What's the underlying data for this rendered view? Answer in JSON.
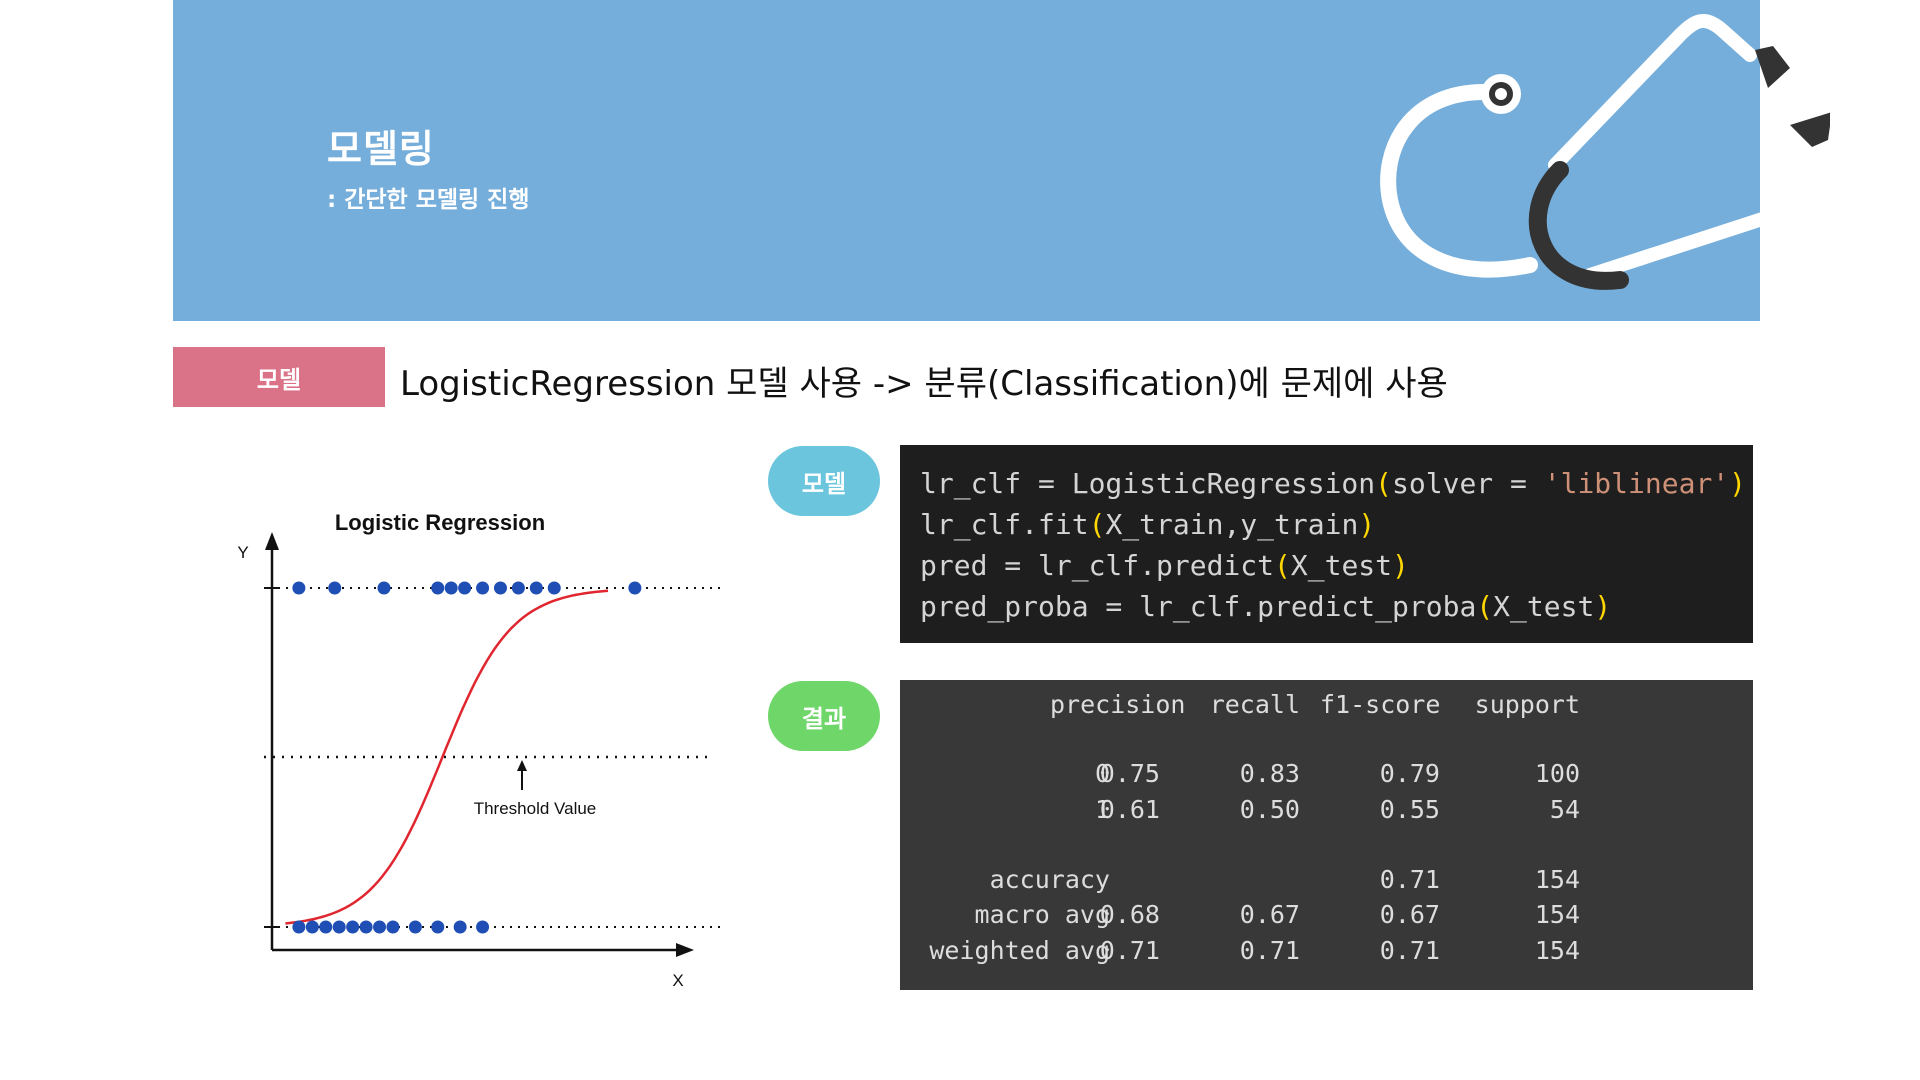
{
  "banner": {
    "title": "모델링",
    "subtitle": ": 간단한 모델링 진행"
  },
  "section": {
    "tag": "모델",
    "description": "LogisticRegression 모델 사용 -> 분류(Classification)에 문제에 사용"
  },
  "chart_data": {
    "type": "scatter",
    "title": "Logistic Regression",
    "xlabel": "X",
    "ylabel": "Y",
    "annotation": "Threshold Value",
    "threshold": 0.5,
    "ylim": [
      0,
      1
    ],
    "series": [
      {
        "name": "",
        "x": [
          0.06,
          0.09,
          0.12,
          0.15,
          0.18,
          0.21,
          0.24,
          0.27,
          0.32,
          0.37,
          0.42,
          0.47
        ],
        "y": [
          0,
          0,
          0,
          0,
          0,
          0,
          0,
          0,
          0,
          0,
          0,
          0
        ]
      },
      {
        "name": "",
        "x": [
          0.06,
          0.14,
          0.25,
          0.37,
          0.4,
          0.43,
          0.47,
          0.51,
          0.55,
          0.59,
          0.63,
          0.81
        ],
        "y": [
          1,
          1,
          1,
          1,
          1,
          1,
          1,
          1,
          1,
          1,
          1,
          1
        ]
      }
    ],
    "colors": {
      "points": "#1f4fb5",
      "curve": "#e0262f",
      "axis": "#111111"
    }
  },
  "model_pill": {
    "label": "모델"
  },
  "result_pill": {
    "label": "결과"
  },
  "code": {
    "line1": {
      "a": "lr_clf = LogisticRegression",
      "b": "(",
      "c": "solver = ",
      "d": "'liblinear'",
      "e": ")"
    },
    "line2": {
      "a": "lr_clf.fit",
      "b": "(",
      "c": "X_train,y_train",
      "d": ")"
    },
    "line3": {
      "a": "pred = lr_clf.predict",
      "b": "(",
      "c": "X_test",
      "d": ")"
    },
    "line4": {
      "a": "pred_proba = lr_clf.predict_proba",
      "b": "(",
      "c": "X_test",
      "d": ")"
    }
  },
  "report": {
    "headers": [
      "precision",
      "recall",
      "f1-score",
      "support"
    ],
    "rows": [
      {
        "label": "0",
        "precision": "0.75",
        "recall": "0.83",
        "f1": "0.79",
        "support": "100"
      },
      {
        "label": "1",
        "precision": "0.61",
        "recall": "0.50",
        "f1": "0.55",
        "support": "54"
      },
      {
        "label": "accuracy",
        "precision": "",
        "recall": "",
        "f1": "0.71",
        "support": "154"
      },
      {
        "label": "macro avg",
        "precision": "0.68",
        "recall": "0.67",
        "f1": "0.67",
        "support": "154"
      },
      {
        "label": "weighted avg",
        "precision": "0.71",
        "recall": "0.71",
        "f1": "0.71",
        "support": "154"
      }
    ]
  }
}
